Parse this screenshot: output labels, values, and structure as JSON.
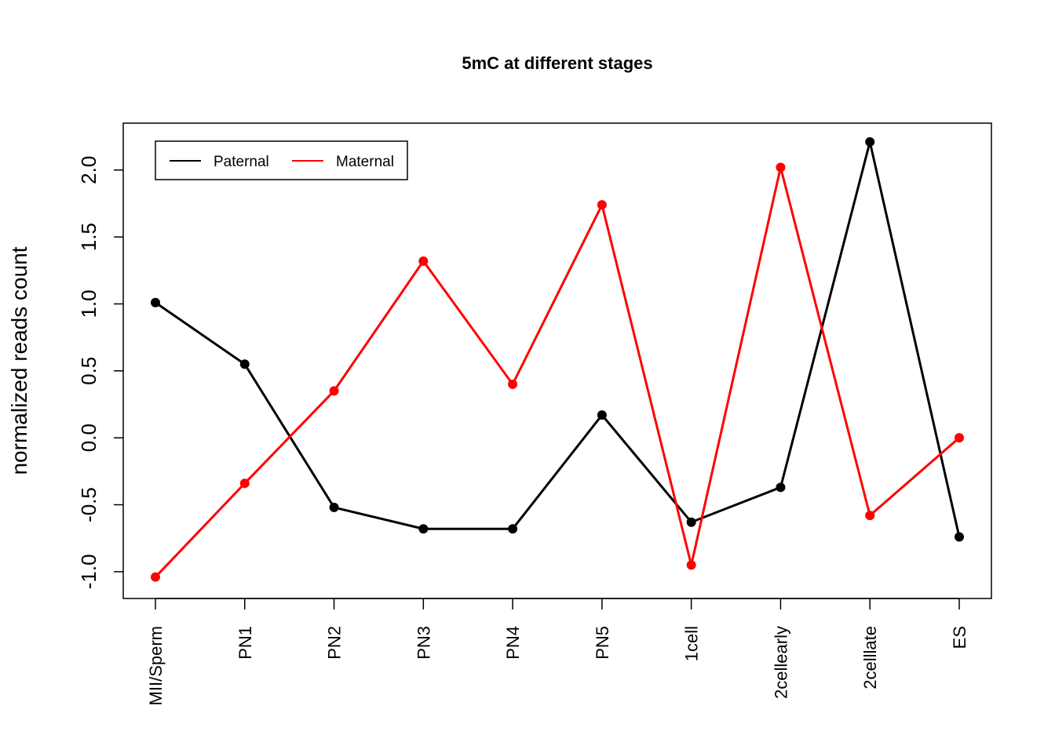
{
  "chart_data": {
    "type": "line",
    "title": "5mC at different stages",
    "xlabel": "",
    "ylabel": "normalized reads count",
    "categories": [
      "MII/Sperm",
      "PN1",
      "PN2",
      "PN3",
      "PN4",
      "PN5",
      "1cell",
      "2cellearly",
      "2celllate",
      "ES"
    ],
    "ylim": [
      -1.2,
      2.35
    ],
    "yticks": [
      -1.0,
      -0.5,
      0.0,
      0.5,
      1.0,
      1.5,
      2.0
    ],
    "ytick_labels": [
      "-1.0",
      "-0.5",
      "0.0",
      "0.5",
      "1.0",
      "1.5",
      "2.0"
    ],
    "grid": false,
    "legend_position": "top-left",
    "series": [
      {
        "name": "Paternal",
        "color": "#000000",
        "values": [
          1.01,
          0.55,
          -0.52,
          -0.68,
          -0.68,
          0.17,
          -0.63,
          -0.37,
          2.21,
          -0.74
        ]
      },
      {
        "name": "Maternal",
        "color": "#ff0000",
        "values": [
          -1.04,
          -0.34,
          0.35,
          1.32,
          0.4,
          1.74,
          -0.95,
          2.02,
          -0.58,
          0.0
        ]
      }
    ]
  }
}
